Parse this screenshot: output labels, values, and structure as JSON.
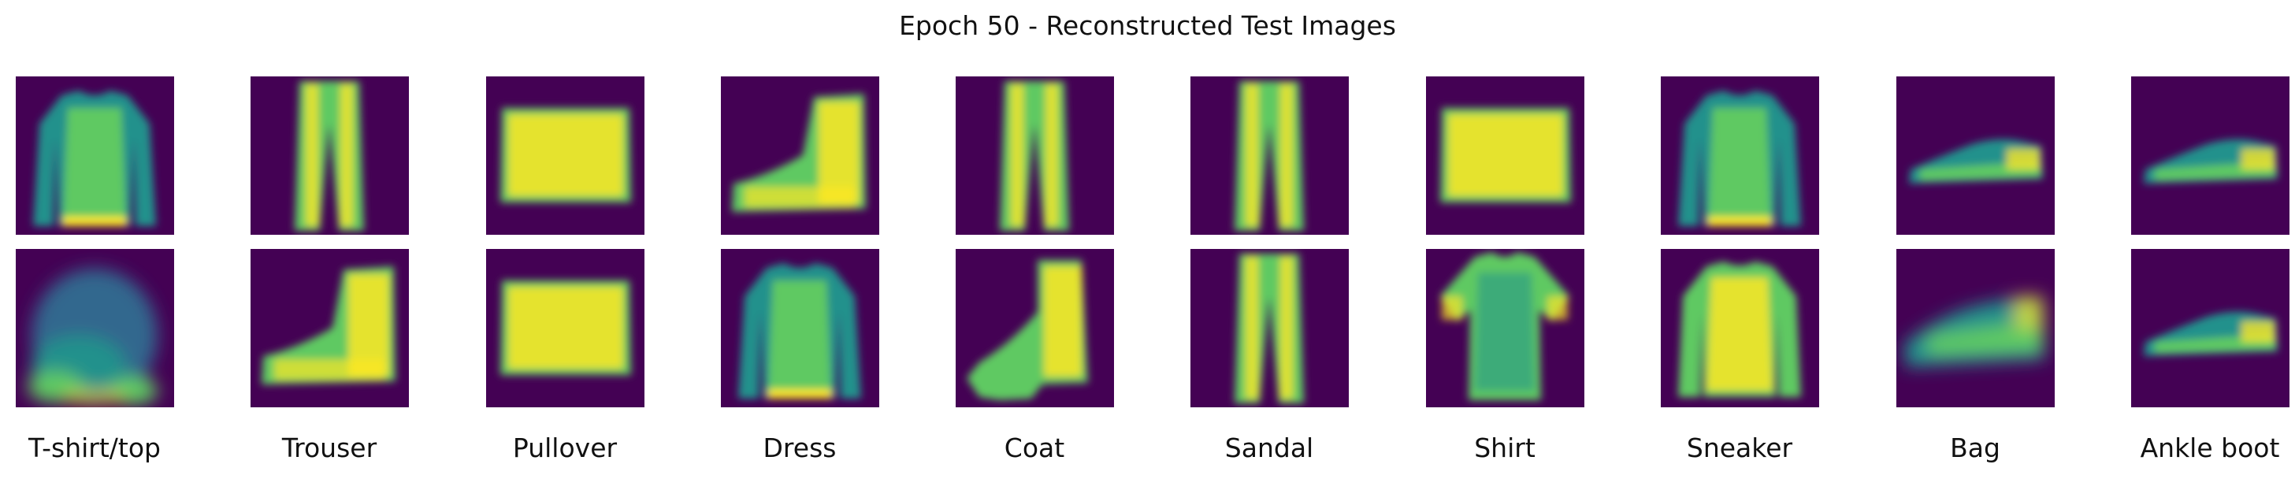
{
  "figure": {
    "title": "Epoch 50 - Reconstructed Test Images"
  },
  "column_labels": [
    "T-shirt/top",
    "Trouser",
    "Pullover",
    "Dress",
    "Coat",
    "Sandal",
    "Shirt",
    "Sneaker",
    "Bag",
    "Ankle boot"
  ],
  "rows": [
    [
      "long-sleeve top",
      "trouser",
      "bag",
      "ankle boot",
      "trouser",
      "trouser",
      "bag",
      "long-sleeve top",
      "sneaker",
      "sneaker"
    ],
    [
      "blurred garment",
      "ankle boot",
      "bag",
      "long-sleeve top",
      "heeled boot",
      "trouser",
      "t-shirt",
      "pullover",
      "blurred sneaker",
      "sneaker"
    ]
  ],
  "colors": {
    "background": "#440154",
    "dark": "#31688e",
    "mid": "#21918c",
    "light": "#5ec962",
    "bright": "#fde725"
  }
}
